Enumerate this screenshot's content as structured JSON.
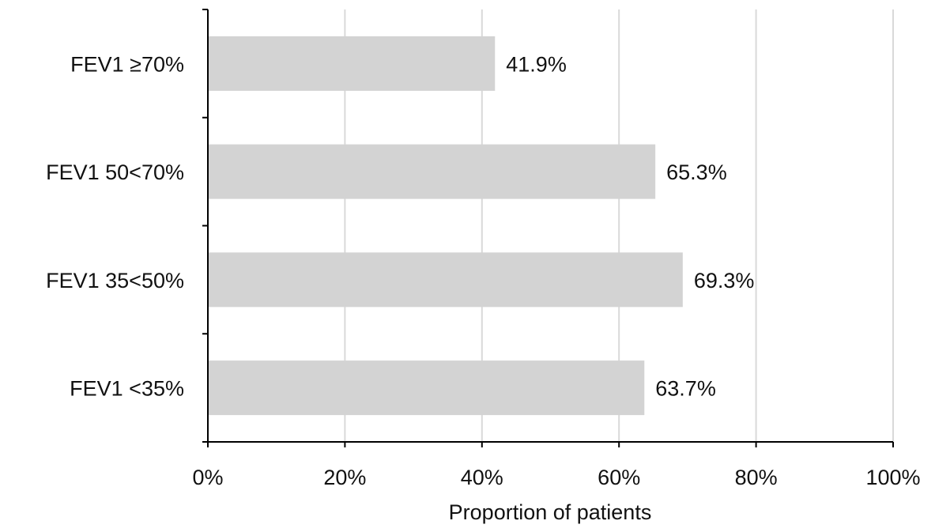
{
  "chart_data": {
    "type": "bar",
    "orientation": "horizontal",
    "categories": [
      "FEV1 ≥70%",
      "FEV1 50<70%",
      "FEV1 35<50%",
      "FEV1 <35%"
    ],
    "values": [
      41.9,
      65.3,
      69.3,
      63.7
    ],
    "data_labels": [
      "41.9%",
      "65.3%",
      "69.3%",
      "63.7%"
    ],
    "title": "",
    "xlabel": "Proportion of patients",
    "ylabel": "",
    "xlim": [
      0,
      100
    ],
    "x_ticks": [
      0,
      20,
      40,
      60,
      80,
      100
    ],
    "x_tick_labels": [
      "0%",
      "20%",
      "40%",
      "60%",
      "80%",
      "100%"
    ],
    "grid": "vertical",
    "legend": "none",
    "colors": {
      "bar": "#d3d3d3",
      "grid": "#d9d9d9",
      "axis": "#000000",
      "text": "#111111"
    }
  }
}
